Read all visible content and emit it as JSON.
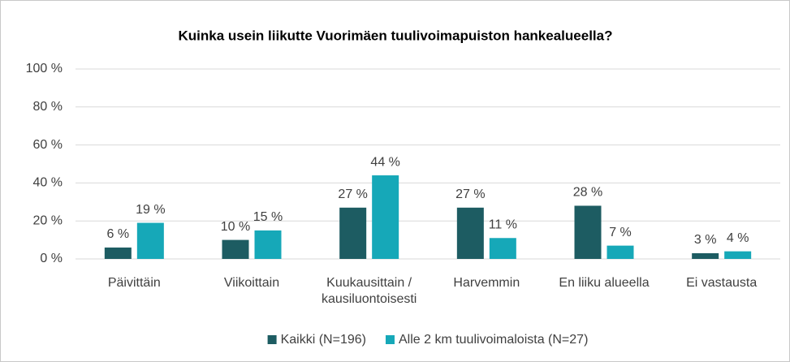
{
  "chart_data": {
    "type": "bar",
    "title": "Kuinka usein liikutte Vuorimäen tuulivoimapuiston hankealueella?",
    "categories": [
      "Päivittäin",
      "Viikoittain",
      "Kuukausittain / kausiluontoisesti",
      "Harvemmin",
      "En liiku alueella",
      "Ei vastausta"
    ],
    "series": [
      {
        "name": "Kaikki (N=196)",
        "color": "#1d5c62",
        "values": [
          6,
          10,
          27,
          27,
          28,
          3
        ],
        "value_labels": [
          "6 %",
          "10 %",
          "27 %",
          "27 %",
          "28 %",
          "3 %"
        ]
      },
      {
        "name": "Alle 2 km tuulivoimaloista (N=27)",
        "color": "#16a8b8",
        "values": [
          19,
          15,
          44,
          11,
          7,
          4
        ],
        "value_labels": [
          "19 %",
          "15 %",
          "44 %",
          "11 %",
          "7 %",
          "4 %"
        ]
      }
    ],
    "ylim": [
      0,
      100
    ],
    "yticks": [
      {
        "value": 0,
        "label": "0 %"
      },
      {
        "value": 20,
        "label": "20 %"
      },
      {
        "value": 40,
        "label": "40 %"
      },
      {
        "value": 60,
        "label": "60 %"
      },
      {
        "value": 80,
        "label": "80 %"
      },
      {
        "value": 100,
        "label": "100 %"
      }
    ],
    "grid": true,
    "legend": "bottom"
  }
}
